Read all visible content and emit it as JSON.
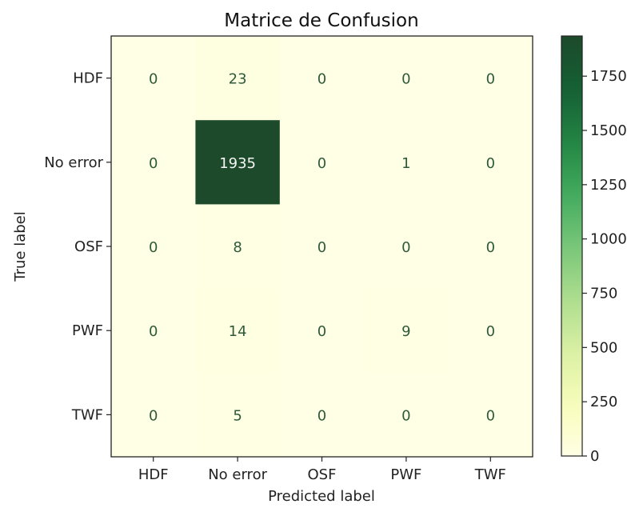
{
  "chart_data": {
    "type": "heatmap",
    "title": "Matrice de Confusion",
    "xlabel": "Predicted label",
    "ylabel": "True label",
    "x_categories": [
      "HDF",
      "No error",
      "OSF",
      "PWF",
      "TWF"
    ],
    "y_categories": [
      "HDF",
      "No error",
      "OSF",
      "PWF",
      "TWF"
    ],
    "matrix": [
      [
        0,
        23,
        0,
        0,
        0
      ],
      [
        0,
        1935,
        0,
        1,
        0
      ],
      [
        0,
        8,
        0,
        0,
        0
      ],
      [
        0,
        14,
        0,
        9,
        0
      ],
      [
        0,
        5,
        0,
        0,
        0
      ]
    ],
    "colormap": "YlGn",
    "colorbar": {
      "range": [
        0,
        1935
      ],
      "ticks": [
        0,
        250,
        500,
        750,
        1000,
        1250,
        1500,
        1750
      ]
    },
    "colors": {
      "low": "#ffffe5",
      "high": "#1d4a2b",
      "text_dark_bg": "#f5f5f5",
      "text_light_bg": "#2f5a3a"
    }
  }
}
